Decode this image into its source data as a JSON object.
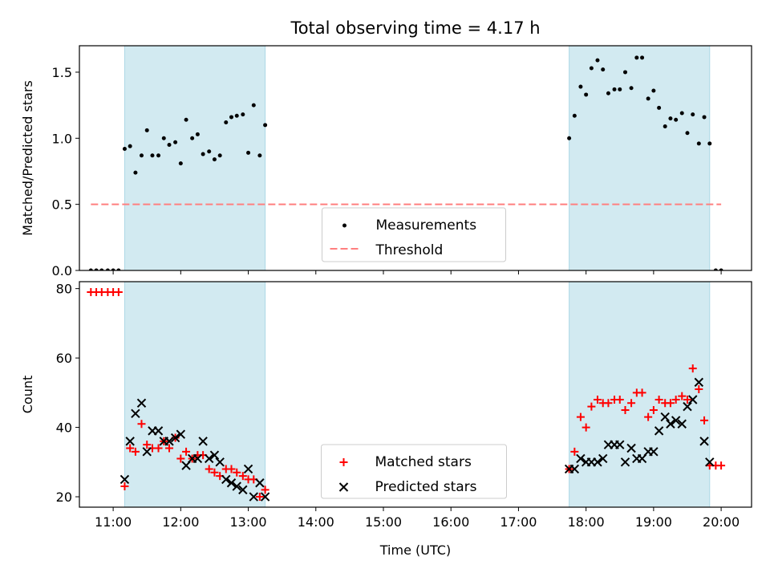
{
  "title": "Total observing time = 4.17 h",
  "colors": {
    "shade": "#add8e6",
    "threshold": "#ff7f7f",
    "matched": "#ff0000",
    "predicted": "#000000",
    "measure": "#000000"
  },
  "chart_data": [
    {
      "type": "scatter",
      "ylabel": "Matched/Predicted stars",
      "xlabel": "",
      "xlim": [
        10.5,
        20.45
      ],
      "ylim": [
        0,
        1.7
      ],
      "yticks": [
        0.0,
        0.5,
        1.0,
        1.5
      ],
      "ytick_labels": [
        "0.0",
        "0.5",
        "1.0",
        "1.5"
      ],
      "shaded_intervals": [
        [
          11.17,
          13.25
        ],
        [
          17.75,
          19.83
        ]
      ],
      "threshold": {
        "name": "Threshold",
        "y": 0.5,
        "x_range": [
          10.67,
          20.0
        ]
      },
      "legend_position": "lower-center",
      "legend": [
        "Measurements",
        "Threshold"
      ],
      "series": [
        {
          "name": "Measurements",
          "marker": "dot",
          "x": [
            10.67,
            10.75,
            10.83,
            10.92,
            11.0,
            11.08,
            11.17,
            11.25,
            11.33,
            11.42,
            11.5,
            11.58,
            11.67,
            11.75,
            11.83,
            11.92,
            12.0,
            12.08,
            12.17,
            12.25,
            12.33,
            12.42,
            12.5,
            12.58,
            12.67,
            12.75,
            12.83,
            12.92,
            13.0,
            13.08,
            13.17,
            13.25,
            17.75,
            17.83,
            17.92,
            18.0,
            18.08,
            18.17,
            18.25,
            18.33,
            18.42,
            18.5,
            18.58,
            18.67,
            18.75,
            18.83,
            18.92,
            19.0,
            19.08,
            19.17,
            19.25,
            19.33,
            19.42,
            19.5,
            19.58,
            19.67,
            19.75,
            19.83,
            19.92,
            20.0
          ],
          "y": [
            0,
            0,
            0,
            0,
            0,
            0,
            0.92,
            0.94,
            0.74,
            0.87,
            1.06,
            0.87,
            0.87,
            1.0,
            0.95,
            0.97,
            0.81,
            1.14,
            1.0,
            1.03,
            0.88,
            0.9,
            0.84,
            0.87,
            1.12,
            1.16,
            1.17,
            1.18,
            0.89,
            1.25,
            0.87,
            1.1,
            1.0,
            1.17,
            1.39,
            1.33,
            1.53,
            1.59,
            1.52,
            1.34,
            1.37,
            1.37,
            1.5,
            1.38,
            1.61,
            1.61,
            1.3,
            1.36,
            1.23,
            1.09,
            1.15,
            1.14,
            1.19,
            1.04,
            1.18,
            0.96,
            1.16,
            0.96,
            0,
            0
          ]
        }
      ]
    },
    {
      "type": "scatter",
      "ylabel": "Count",
      "xlabel": "Time (UTC)",
      "xlim": [
        10.5,
        20.45
      ],
      "ylim": [
        17,
        82
      ],
      "yticks": [
        20,
        40,
        60,
        80
      ],
      "ytick_labels": [
        "20",
        "40",
        "60",
        "80"
      ],
      "xticks": [
        11,
        12,
        13,
        14,
        15,
        16,
        17,
        18,
        19,
        20
      ],
      "xtick_labels": [
        "11:00",
        "12:00",
        "13:00",
        "14:00",
        "15:00",
        "16:00",
        "17:00",
        "18:00",
        "19:00",
        "20:00"
      ],
      "shaded_intervals": [
        [
          11.17,
          13.25
        ],
        [
          17.75,
          19.83
        ]
      ],
      "legend_position": "lower-center",
      "legend": [
        "Matched stars",
        "Predicted stars"
      ],
      "series": [
        {
          "name": "Matched stars",
          "marker": "plus",
          "x": [
            10.67,
            10.75,
            10.83,
            10.92,
            11.0,
            11.08,
            11.17,
            11.25,
            11.33,
            11.42,
            11.5,
            11.58,
            11.67,
            11.75,
            11.83,
            11.92,
            12.0,
            12.08,
            12.17,
            12.25,
            12.33,
            12.42,
            12.5,
            12.58,
            12.67,
            12.75,
            12.83,
            12.92,
            13.0,
            13.08,
            13.17,
            13.25,
            17.75,
            17.83,
            17.92,
            18.0,
            18.08,
            18.17,
            18.25,
            18.33,
            18.42,
            18.5,
            18.58,
            18.67,
            18.75,
            18.83,
            18.92,
            19.0,
            19.08,
            19.17,
            19.25,
            19.33,
            19.42,
            19.5,
            19.58,
            19.67,
            19.75,
            19.83,
            19.92,
            20.0
          ],
          "y": [
            79,
            79,
            79,
            79,
            79,
            79,
            23,
            34,
            33,
            41,
            35,
            34,
            34,
            36,
            34,
            37,
            31,
            33,
            31,
            32,
            32,
            28,
            27,
            26,
            28,
            28,
            27,
            26,
            25,
            25,
            20,
            22,
            28,
            33,
            43,
            40,
            46,
            48,
            47,
            47,
            48,
            48,
            45,
            47,
            50,
            50,
            43,
            45,
            48,
            47,
            47,
            48,
            49,
            48,
            57,
            51,
            42,
            29,
            29,
            29
          ]
        },
        {
          "name": "Predicted stars",
          "marker": "x",
          "x": [
            11.17,
            11.25,
            11.33,
            11.42,
            11.5,
            11.58,
            11.67,
            11.75,
            11.83,
            11.92,
            12.0,
            12.08,
            12.17,
            12.25,
            12.33,
            12.42,
            12.5,
            12.58,
            12.67,
            12.75,
            12.83,
            12.92,
            13.0,
            13.08,
            13.17,
            13.25,
            17.75,
            17.83,
            17.92,
            18.0,
            18.08,
            18.17,
            18.25,
            18.33,
            18.42,
            18.5,
            18.58,
            18.67,
            18.75,
            18.83,
            18.92,
            19.0,
            19.08,
            19.17,
            19.25,
            19.33,
            19.42,
            19.5,
            19.58,
            19.67,
            19.75,
            19.83
          ],
          "y": [
            25,
            36,
            44,
            47,
            33,
            39,
            39,
            36,
            36,
            37,
            38,
            29,
            31,
            31,
            36,
            31,
            32,
            30,
            25,
            24,
            23,
            22,
            28,
            20,
            24,
            20,
            28,
            28,
            31,
            30,
            30,
            30,
            31,
            35,
            35,
            35,
            30,
            34,
            31,
            31,
            33,
            33,
            39,
            43,
            41,
            42,
            41,
            46,
            48,
            53,
            36,
            30
          ]
        }
      ]
    }
  ]
}
